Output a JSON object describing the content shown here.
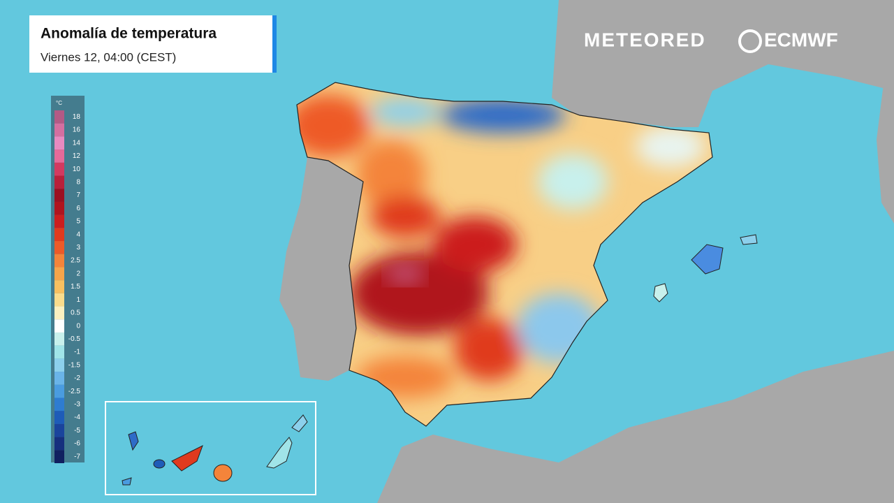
{
  "header": {
    "title": "Anomalía de temperatura",
    "subtitle": "Viernes 12, 04:00 (CEST)"
  },
  "brands": {
    "meteored": "METEORED",
    "ecmwf": "ECMWF"
  },
  "legend": {
    "unit": "°C",
    "stops": [
      {
        "label": "18",
        "color": "#b35a85"
      },
      {
        "label": "16",
        "color": "#d46fa0"
      },
      {
        "label": "14",
        "color": "#e88ac0"
      },
      {
        "label": "12",
        "color": "#e66a99"
      },
      {
        "label": "10",
        "color": "#d33a60"
      },
      {
        "label": "8",
        "color": "#b8203a"
      },
      {
        "label": "7",
        "color": "#9c1020"
      },
      {
        "label": "6",
        "color": "#b0141e"
      },
      {
        "label": "5",
        "color": "#cc1e1e"
      },
      {
        "label": "4",
        "color": "#e03a1e"
      },
      {
        "label": "3",
        "color": "#ee5a28"
      },
      {
        "label": "2.5",
        "color": "#f4843a"
      },
      {
        "label": "2",
        "color": "#f7a44a"
      },
      {
        "label": "1.5",
        "color": "#f8c060"
      },
      {
        "label": "1",
        "color": "#fadc8c"
      },
      {
        "label": "0.5",
        "color": "#fcf0c0"
      },
      {
        "label": "0",
        "color": "#ffffff"
      },
      {
        "label": "-0.5",
        "color": "#c8f0ec"
      },
      {
        "label": "-1",
        "color": "#a0e4e8"
      },
      {
        "label": "-1.5",
        "color": "#8cd0ec"
      },
      {
        "label": "-2",
        "color": "#6ab4e8"
      },
      {
        "label": "-2.5",
        "color": "#4a9ce0"
      },
      {
        "label": "-3",
        "color": "#2e7cd0"
      },
      {
        "label": "-4",
        "color": "#1e5cb8"
      },
      {
        "label": "-5",
        "color": "#1a449c"
      },
      {
        "label": "-6",
        "color": "#16307e"
      },
      {
        "label": "-7",
        "color": "#102060"
      }
    ]
  }
}
